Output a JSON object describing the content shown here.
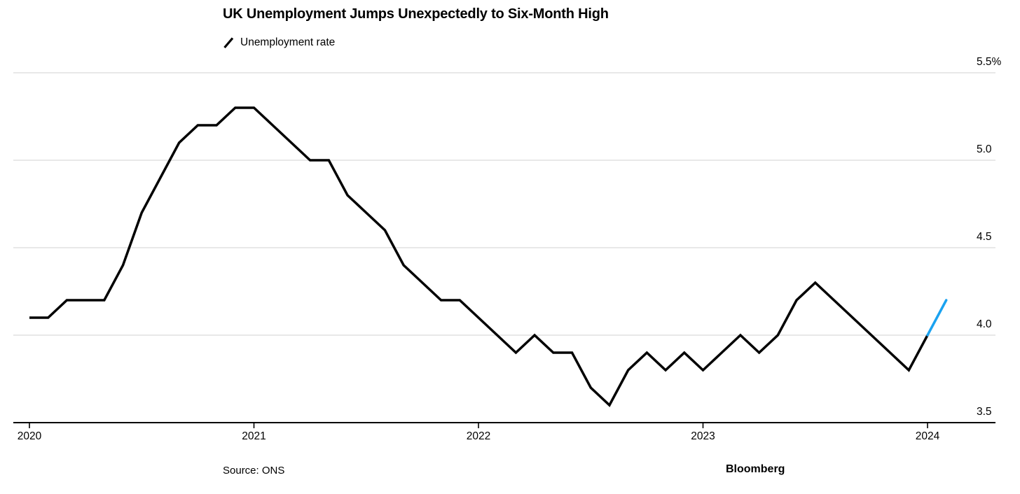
{
  "title": "UK Unemployment Jumps Unexpectedly to Six-Month High",
  "legend": {
    "label": "Unemployment rate"
  },
  "source": "Source: ONS",
  "brand": "Bloomberg",
  "colors": {
    "line": "#000000",
    "highlight_blue": "#1AA2F0",
    "grid": "#D9D9D9",
    "axis": "#000000",
    "text": "#000000"
  },
  "chart_data": {
    "type": "line",
    "unit": "%",
    "x_start": "2020-01",
    "x_end": "2024-02",
    "frequency": "monthly",
    "ylim": [
      3.5,
      5.5
    ],
    "grid": "horizontal-only",
    "legend_position": "top-left",
    "series": [
      {
        "name": "Unemployment rate",
        "color": "#000000",
        "values": [
          4.1,
          4.1,
          4.2,
          4.2,
          4.2,
          4.4,
          4.7,
          4.9,
          5.1,
          5.2,
          5.2,
          5.3,
          5.3,
          5.2,
          5.1,
          5.0,
          5.0,
          4.8,
          4.7,
          4.6,
          4.4,
          4.3,
          4.2,
          4.2,
          4.1,
          4.0,
          3.9,
          4.0,
          3.9,
          3.9,
          3.7,
          3.6,
          3.8,
          3.9,
          3.8,
          3.9,
          3.8,
          3.9,
          4.0,
          3.9,
          4.0,
          4.2,
          4.3,
          4.2,
          4.1,
          4.0,
          3.9,
          3.8,
          4.0,
          4.2
        ]
      }
    ],
    "highlight_segment": {
      "from_index": 48,
      "to_index": 49,
      "from_month": "2024-01",
      "to_month": "2024-02",
      "color": "#1AA2F0"
    },
    "last_value": 4.2,
    "y_ticks": [
      {
        "value": 5.5,
        "label": "5.5%"
      },
      {
        "value": 5.0,
        "label": "5.0"
      },
      {
        "value": 4.5,
        "label": "4.5"
      },
      {
        "value": 4.0,
        "label": "4.0"
      },
      {
        "value": 3.5,
        "label": "3.5"
      }
    ],
    "x_ticks": [
      {
        "month_index": 0,
        "label": "2020"
      },
      {
        "month_index": 12,
        "label": "2021"
      },
      {
        "month_index": 24,
        "label": "2022"
      },
      {
        "month_index": 36,
        "label": "2023"
      },
      {
        "month_index": 48,
        "label": "2024"
      }
    ]
  }
}
